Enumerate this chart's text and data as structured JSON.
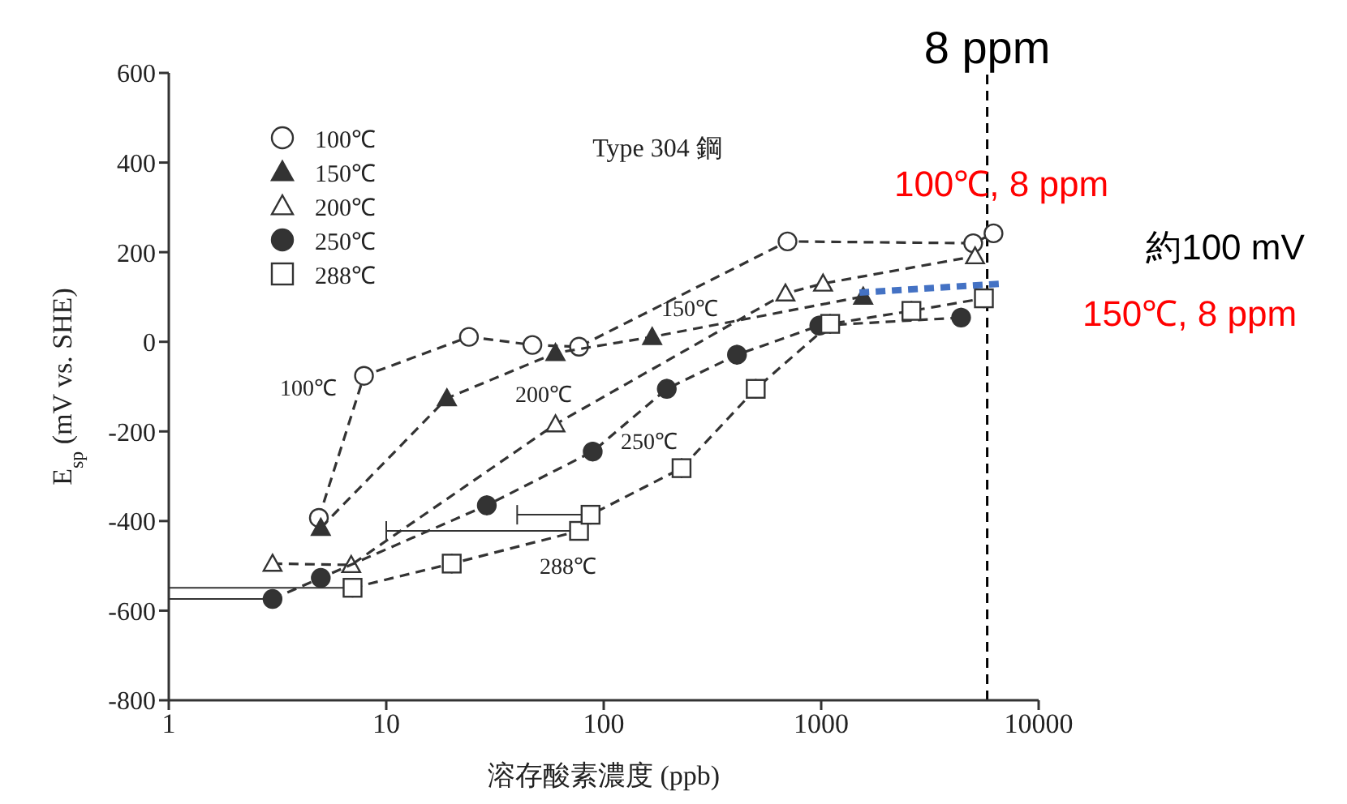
{
  "chart_data": {
    "type": "line",
    "xlabel": "溶存酸素濃度 (ppb)",
    "ylabel": "E$_{sp}$ (mV vs. SHE)",
    "log": "x",
    "xlim": [
      1,
      10000
    ],
    "xticks": [
      1,
      10,
      100,
      1000,
      10000
    ],
    "ylim": [
      -800,
      600
    ],
    "yticks": [
      -800,
      -600,
      -400,
      -200,
      0,
      200,
      400,
      600
    ],
    "grid": false,
    "legend": "top left",
    "line_style": "dashed",
    "series": [
      {
        "name": "100℃",
        "color": "#333333",
        "marker": "circle",
        "x": [
          4.9,
          7.9,
          24,
          47,
          77,
          700,
          5000,
          6200
        ],
        "values": [
          -393,
          -76,
          11,
          -7,
          -11,
          224,
          220,
          242
        ]
      },
      {
        "name": "150℃",
        "color": "#333333",
        "marker": "triangle",
        "x": [
          5,
          19,
          60,
          167,
          1560
        ],
        "values": [
          -415,
          -126,
          -25,
          11,
          101
        ]
      },
      {
        "name": "200℃",
        "color": "#333333",
        "marker": "triangle",
        "x": [
          3,
          6.9,
          60,
          685,
          1020,
          5100
        ],
        "values": [
          -495,
          -498,
          -184,
          108,
          130,
          191
        ]
      },
      {
        "name": "250℃",
        "color": "#333333",
        "marker": "circle",
        "x": [
          3,
          5,
          29,
          89,
          195,
          410,
          980,
          4400
        ],
        "values": [
          -574,
          -527,
          -365,
          -245,
          -105,
          -29,
          36,
          54
        ],
        "xerrors": [
          [
            1,
            3
          ],
          null,
          null,
          null,
          null,
          null,
          null,
          null
        ]
      },
      {
        "name": "288℃",
        "color": "#333333",
        "marker": "square",
        "x": [
          7,
          20,
          77,
          87,
          228,
          500,
          1100,
          2600,
          5600
        ],
        "values": [
          -549,
          -495,
          -422,
          -386,
          -282,
          -105,
          40,
          69,
          97
        ],
        "xerrors": [
          [
            1,
            7
          ],
          null,
          [
            10,
            77
          ],
          [
            40,
            87
          ],
          null,
          null,
          null,
          null,
          null
        ]
      },
      {
        "type": "line",
        "color": "#4472c4",
        "marker": "none",
        "x": [
          1500,
          7000
        ],
        "values": [
          110,
          130
        ]
      }
    ],
    "ref_lines": [
      {
        "axis": "x",
        "value": 5800,
        "label": "8 ppm",
        "color": "#000000",
        "line_style": "dashed"
      }
    ],
    "annotations": [
      "Type 304 鋼",
      "100℃",
      "150℃",
      "200℃",
      "250℃",
      "288℃",
      "100℃, 8 ppm",
      "約100 mV",
      "150℃, 8 ppm"
    ]
  }
}
